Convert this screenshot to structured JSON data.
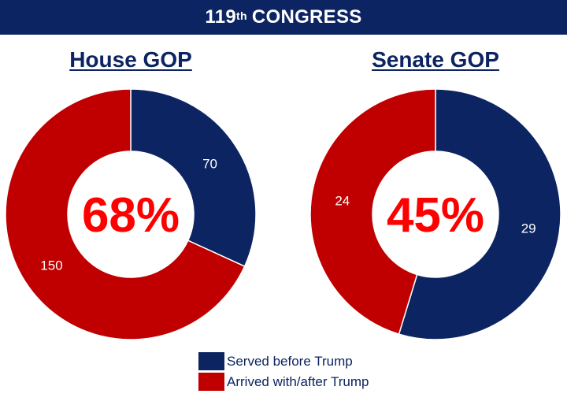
{
  "banner": {
    "number": "119",
    "suffix": "th",
    "text": "CONGRESS"
  },
  "colors": {
    "navy": "#0c2461",
    "red": "#c00000",
    "center_text": "#ff0000"
  },
  "legend": [
    {
      "label": "Served before Trump",
      "color": "#0c2461"
    },
    {
      "label": "Arrived with/after Trump",
      "color": "#c00000"
    }
  ],
  "chart_data": [
    {
      "type": "pie",
      "title": "House GOP",
      "center_label": "68%",
      "categories": [
        "Served before Trump",
        "Arrived with/after Trump"
      ],
      "values": [
        70,
        150
      ]
    },
    {
      "type": "pie",
      "title": "Senate GOP",
      "center_label": "45%",
      "categories": [
        "Served before Trump",
        "Arrived with/after Trump"
      ],
      "values": [
        29,
        24
      ]
    }
  ]
}
